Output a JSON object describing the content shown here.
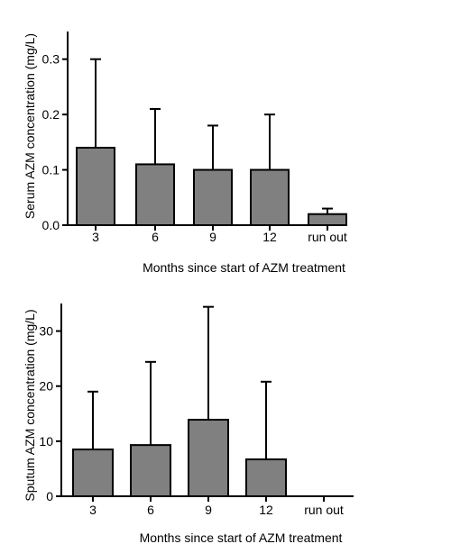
{
  "chart_data": [
    {
      "type": "bar",
      "categories": [
        "3",
        "6",
        "9",
        "12",
        "run out"
      ],
      "values": [
        0.14,
        0.11,
        0.1,
        0.1,
        0.02
      ],
      "error_upper": [
        0.3,
        0.21,
        0.18,
        0.2,
        0.03
      ],
      "title": "",
      "xlabel": "Months since start of AZM treatment",
      "ylabel": "Serum AZM concentration (mg/L)",
      "ylim": [
        0,
        0.35
      ],
      "yticks": [
        0.0,
        0.1,
        0.2,
        0.3
      ],
      "ytick_labels": [
        "0.0",
        "0.1",
        "0.2",
        "0.3"
      ],
      "bar_color": "#808080",
      "grid": false
    },
    {
      "type": "bar",
      "categories": [
        "3",
        "6",
        "9",
        "12",
        "run out"
      ],
      "values": [
        8.5,
        9.3,
        13.9,
        6.7,
        0.0
      ],
      "error_upper": [
        19.0,
        24.4,
        34.4,
        20.8,
        0.0
      ],
      "title": "",
      "xlabel": "Months since start of AZM treatment",
      "ylabel": "Sputum AZM concentration (mg/L)",
      "ylim": [
        0,
        35
      ],
      "yticks": [
        0,
        10,
        20,
        30
      ],
      "ytick_labels": [
        "0",
        "10",
        "20",
        "30"
      ],
      "bar_color": "#808080",
      "grid": false
    }
  ]
}
